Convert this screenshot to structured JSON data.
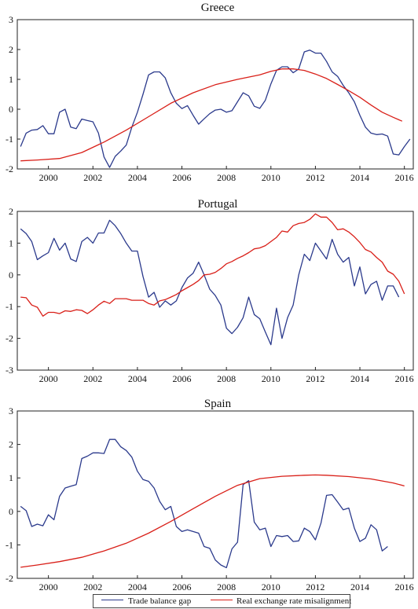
{
  "colors": {
    "trade": "#2b3a8c",
    "rer": "#d91f18",
    "axis": "#222222"
  },
  "legend": {
    "trade_label": "Trade balance gap",
    "rer_label": "Real exchange rate misalignment",
    "placement": "bottom-center"
  },
  "chart_data": [
    {
      "type": "line",
      "title": "Greece",
      "xlim": [
        1998.6,
        2016.4
      ],
      "ylim": [
        -2,
        3
      ],
      "xticks": [
        2000,
        2002,
        2004,
        2006,
        2008,
        2010,
        2012,
        2014,
        2016
      ],
      "yticks": [
        -2,
        -1,
        0,
        1,
        2,
        3
      ],
      "grid": false,
      "series": [
        {
          "name": "Trade balance gap",
          "x": [
            1998.75,
            1999.0,
            1999.25,
            1999.5,
            1999.75,
            2000.0,
            2000.25,
            2000.5,
            2000.75,
            2001.0,
            2001.25,
            2001.5,
            2001.75,
            2002.0,
            2002.25,
            2002.5,
            2002.75,
            2003.0,
            2003.25,
            2003.5,
            2003.75,
            2004.0,
            2004.25,
            2004.5,
            2004.75,
            2005.0,
            2005.25,
            2005.5,
            2005.75,
            2006.0,
            2006.25,
            2006.5,
            2006.75,
            2007.0,
            2007.25,
            2007.5,
            2007.75,
            2008.0,
            2008.25,
            2008.5,
            2008.75,
            2009.0,
            2009.25,
            2009.5,
            2009.75,
            2010.0,
            2010.25,
            2010.5,
            2010.75,
            2011.0,
            2011.25,
            2011.5,
            2011.75,
            2012.0,
            2012.25,
            2012.5,
            2012.75,
            2013.0,
            2013.25,
            2013.5,
            2013.75,
            2014.0,
            2014.25,
            2014.5,
            2014.75,
            2015.0,
            2015.25,
            2015.5,
            2015.75,
            2016.0,
            2016.25
          ],
          "values": [
            -1.25,
            -0.8,
            -0.7,
            -0.68,
            -0.55,
            -0.82,
            -0.82,
            -0.1,
            0.0,
            -0.6,
            -0.65,
            -0.33,
            -0.38,
            -0.42,
            -0.8,
            -1.6,
            -1.95,
            -1.58,
            -1.4,
            -1.2,
            -0.6,
            -0.1,
            0.5,
            1.15,
            1.25,
            1.25,
            1.05,
            0.55,
            0.2,
            0.02,
            0.12,
            -0.2,
            -0.5,
            -0.32,
            -0.15,
            -0.03,
            0.0,
            -0.1,
            -0.05,
            0.25,
            0.55,
            0.45,
            0.1,
            0.03,
            0.3,
            0.85,
            1.3,
            1.42,
            1.42,
            1.22,
            1.35,
            1.92,
            1.98,
            1.88,
            1.88,
            1.6,
            1.25,
            1.1,
            0.8,
            0.55,
            0.25,
            -0.2,
            -0.6,
            -0.8,
            -0.85,
            -0.83,
            -0.9,
            -1.5,
            -1.53,
            -1.25,
            -1.0
          ]
        },
        {
          "name": "Real exchange rate misalignment",
          "x": [
            1998.75,
            1999.5,
            2000.5,
            2001.5,
            2002.5,
            2003.5,
            2004.5,
            2005.5,
            2006.5,
            2007.5,
            2008.5,
            2009.5,
            2010.0,
            2010.5,
            2011.0,
            2011.5,
            2012.0,
            2012.5,
            2013.0,
            2013.5,
            2014.0,
            2014.5,
            2015.0,
            2015.5,
            2015.9
          ],
          "values": [
            -1.73,
            -1.7,
            -1.65,
            -1.45,
            -1.1,
            -0.7,
            -0.25,
            0.2,
            0.55,
            0.82,
            1.0,
            1.15,
            1.27,
            1.35,
            1.35,
            1.3,
            1.18,
            1.03,
            0.83,
            0.62,
            0.4,
            0.14,
            -0.1,
            -0.27,
            -0.4
          ]
        }
      ]
    },
    {
      "type": "line",
      "title": "Portugal",
      "xlim": [
        1998.6,
        2016.4
      ],
      "ylim": [
        -3,
        2
      ],
      "xticks": [
        2000,
        2002,
        2004,
        2006,
        2008,
        2010,
        2012,
        2014,
        2016
      ],
      "yticks": [
        -3,
        -2,
        -1,
        0,
        1,
        2
      ],
      "grid": false,
      "series": [
        {
          "name": "Trade balance gap",
          "x": [
            1998.75,
            1999.0,
            1999.25,
            1999.5,
            1999.75,
            2000.0,
            2000.25,
            2000.5,
            2000.75,
            2001.0,
            2001.25,
            2001.5,
            2001.75,
            2002.0,
            2002.25,
            2002.5,
            2002.75,
            2003.0,
            2003.25,
            2003.5,
            2003.75,
            2004.0,
            2004.25,
            2004.5,
            2004.75,
            2005.0,
            2005.25,
            2005.5,
            2005.75,
            2006.0,
            2006.25,
            2006.5,
            2006.75,
            2007.0,
            2007.25,
            2007.5,
            2007.75,
            2008.0,
            2008.25,
            2008.5,
            2008.75,
            2009.0,
            2009.25,
            2009.5,
            2009.75,
            2010.0,
            2010.25,
            2010.5,
            2010.75,
            2011.0,
            2011.25,
            2011.5,
            2011.75,
            2012.0,
            2012.25,
            2012.5,
            2012.75,
            2013.0,
            2013.25,
            2013.5,
            2013.75,
            2014.0,
            2014.25,
            2014.5,
            2014.75,
            2015.0,
            2015.25,
            2015.5,
            2015.75
          ],
          "values": [
            1.45,
            1.3,
            1.05,
            0.48,
            0.6,
            0.7,
            1.15,
            0.78,
            1.0,
            0.5,
            0.42,
            1.05,
            1.18,
            1.0,
            1.32,
            1.32,
            1.72,
            1.55,
            1.3,
            1.0,
            0.75,
            0.75,
            -0.05,
            -0.7,
            -0.55,
            -1.02,
            -0.82,
            -0.95,
            -0.82,
            -0.4,
            -0.1,
            0.05,
            0.4,
            0.0,
            -0.45,
            -0.65,
            -0.95,
            -1.68,
            -1.85,
            -1.65,
            -1.35,
            -0.7,
            -1.25,
            -1.38,
            -1.8,
            -2.2,
            -1.05,
            -2.0,
            -1.35,
            -0.95,
            0.0,
            0.65,
            0.45,
            1.0,
            0.75,
            0.5,
            1.12,
            0.65,
            0.4,
            0.55,
            -0.35,
            0.25,
            -0.6,
            -0.3,
            -0.2,
            -0.8,
            -0.35,
            -0.35,
            -0.7
          ]
        },
        {
          "name": "Real exchange rate misalignment",
          "x": [
            1998.75,
            1999.0,
            1999.25,
            1999.5,
            1999.75,
            2000.0,
            2000.25,
            2000.5,
            2000.75,
            2001.0,
            2001.25,
            2001.5,
            2001.75,
            2002.0,
            2002.25,
            2002.5,
            2002.75,
            2003.0,
            2003.25,
            2003.5,
            2003.75,
            2004.0,
            2004.25,
            2004.5,
            2004.75,
            2005.0,
            2005.25,
            2005.5,
            2005.75,
            2006.0,
            2006.25,
            2006.5,
            2006.75,
            2007.0,
            2007.25,
            2007.5,
            2007.75,
            2008.0,
            2008.25,
            2008.5,
            2008.75,
            2009.0,
            2009.25,
            2009.5,
            2009.75,
            2010.0,
            2010.25,
            2010.5,
            2010.75,
            2011.0,
            2011.25,
            2011.5,
            2011.75,
            2012.0,
            2012.25,
            2012.5,
            2012.75,
            2013.0,
            2013.25,
            2013.5,
            2013.75,
            2014.0,
            2014.25,
            2014.5,
            2014.75,
            2015.0,
            2015.25,
            2015.5,
            2015.75,
            2016.0
          ],
          "values": [
            -0.7,
            -0.72,
            -0.95,
            -1.02,
            -1.3,
            -1.18,
            -1.18,
            -1.22,
            -1.13,
            -1.15,
            -1.1,
            -1.12,
            -1.22,
            -1.1,
            -0.95,
            -0.83,
            -0.9,
            -0.75,
            -0.75,
            -0.75,
            -0.8,
            -0.8,
            -0.8,
            -0.9,
            -0.95,
            -0.82,
            -0.78,
            -0.7,
            -0.62,
            -0.5,
            -0.4,
            -0.3,
            -0.18,
            0.0,
            0.02,
            0.08,
            0.2,
            0.35,
            0.42,
            0.52,
            0.6,
            0.7,
            0.82,
            0.85,
            0.92,
            1.05,
            1.18,
            1.38,
            1.35,
            1.55,
            1.62,
            1.65,
            1.75,
            1.92,
            1.82,
            1.82,
            1.65,
            1.42,
            1.45,
            1.35,
            1.2,
            1.02,
            0.8,
            0.72,
            0.55,
            0.4,
            0.12,
            0.02,
            -0.2,
            -0.6
          ]
        }
      ]
    },
    {
      "type": "line",
      "title": "Spain",
      "xlim": [
        1998.6,
        2016.4
      ],
      "ylim": [
        -2,
        3
      ],
      "xticks": [
        2000,
        2002,
        2004,
        2006,
        2008,
        2010,
        2012,
        2014,
        2016
      ],
      "yticks": [
        -2,
        -1,
        0,
        1,
        2,
        3
      ],
      "grid": false,
      "series": [
        {
          "name": "Trade balance gap",
          "x": [
            1998.75,
            1999.0,
            1999.25,
            1999.5,
            1999.75,
            2000.0,
            2000.25,
            2000.5,
            2000.75,
            2001.0,
            2001.25,
            2001.5,
            2001.75,
            2002.0,
            2002.25,
            2002.5,
            2002.75,
            2003.0,
            2003.25,
            2003.5,
            2003.75,
            2004.0,
            2004.25,
            2004.5,
            2004.75,
            2005.0,
            2005.25,
            2005.5,
            2005.75,
            2006.0,
            2006.25,
            2006.5,
            2006.75,
            2007.0,
            2007.25,
            2007.5,
            2007.75,
            2008.0,
            2008.25,
            2008.5,
            2008.75,
            2009.0,
            2009.25,
            2009.5,
            2009.75,
            2010.0,
            2010.25,
            2010.5,
            2010.75,
            2011.0,
            2011.25,
            2011.5,
            2011.75,
            2012.0,
            2012.25,
            2012.5,
            2012.75,
            2013.0,
            2013.25,
            2013.5,
            2013.75,
            2014.0,
            2014.25,
            2014.5,
            2014.75,
            2015.0,
            2015.25
          ],
          "values": [
            0.15,
            0.02,
            -0.45,
            -0.38,
            -0.43,
            -0.1,
            -0.25,
            0.45,
            0.7,
            0.75,
            0.8,
            1.58,
            1.65,
            1.75,
            1.75,
            1.73,
            2.15,
            2.15,
            1.93,
            1.82,
            1.62,
            1.2,
            0.95,
            0.9,
            0.7,
            0.3,
            0.05,
            0.15,
            -0.45,
            -0.6,
            -0.55,
            -0.6,
            -0.65,
            -1.05,
            -1.1,
            -1.45,
            -1.6,
            -1.68,
            -1.12,
            -0.92,
            0.8,
            0.92,
            -0.32,
            -0.55,
            -0.5,
            -1.05,
            -0.72,
            -0.75,
            -0.72,
            -0.9,
            -0.88,
            -0.5,
            -0.6,
            -0.85,
            -0.35,
            0.48,
            0.5,
            0.28,
            0.05,
            0.1,
            -0.5,
            -0.9,
            -0.8,
            -0.4,
            -0.55,
            -1.18,
            -1.05
          ]
        },
        {
          "name": "Real exchange rate misalignment",
          "x": [
            1998.75,
            1999.5,
            2000.5,
            2001.5,
            2002.5,
            2003.5,
            2004.5,
            2005.5,
            2006.5,
            2007.5,
            2008.5,
            2009.5,
            2010.5,
            2011.5,
            2012.0,
            2012.5,
            2013.5,
            2014.5,
            2015.5,
            2016.0
          ],
          "values": [
            -1.67,
            -1.6,
            -1.5,
            -1.37,
            -1.18,
            -0.95,
            -0.65,
            -0.3,
            0.08,
            0.45,
            0.78,
            0.98,
            1.05,
            1.08,
            1.09,
            1.08,
            1.04,
            0.97,
            0.85,
            0.76
          ]
        }
      ]
    }
  ]
}
